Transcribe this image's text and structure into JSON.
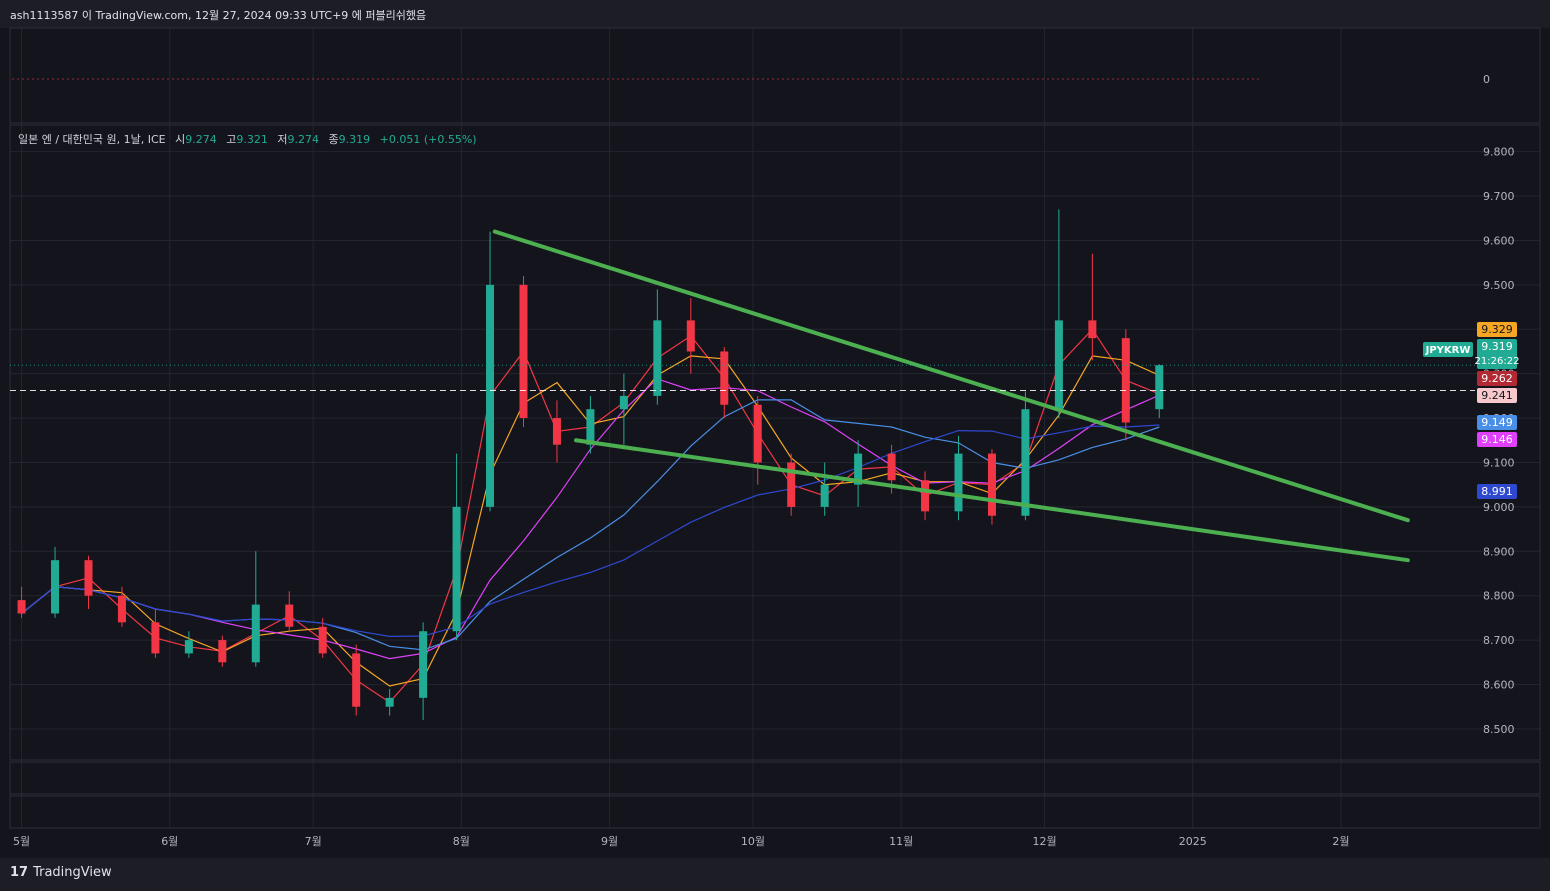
{
  "header": {
    "publish_text": "ash1113587 이 TradingView.com, 12월 27, 2024 09:33 UTC+9 에 퍼블리쉬했음"
  },
  "legend": {
    "symbol_text": "일본 엔 / 대한민국 원, 1날, ICE",
    "open_label": "시",
    "open": "9.274",
    "high_label": "고",
    "high": "9.321",
    "low_label": "저",
    "low": "9.274",
    "close_label": "종",
    "close": "9.319",
    "change": "+0.051 (+0.55%)"
  },
  "footer": {
    "logo_mark": "17",
    "logo_text": "TradingView"
  },
  "colors": {
    "background": "#14151c",
    "up": "#22ab94",
    "down": "#f23645",
    "ma_short": "#f23645",
    "ma_orange": "#f5a623",
    "ma_magenta": "#e040fb",
    "ma_blue_light": "#4a8fe7",
    "ma_blue_dark": "#2f48d0",
    "trendline": "#4caf50"
  },
  "chart_data": {
    "type": "candlestick",
    "symbol": "JPYKRW",
    "timeframe": "1날",
    "ylim": [
      8.43,
      9.86
    ],
    "y_ticks": [
      "9.800",
      "9.700",
      "9.600",
      "9.500",
      "9.400",
      "9.300",
      "9.200",
      "9.100",
      "9.000",
      "8.900",
      "8.800",
      "8.700",
      "8.600",
      "8.500"
    ],
    "oscillator_tick": "0",
    "x_ticks": [
      "5월",
      "6월",
      "7월",
      "8월",
      "9월",
      "10월",
      "11월",
      "12월",
      "2025",
      "2월"
    ],
    "candles_approx": [
      {
        "date": "2024-05-01",
        "open": 8.79,
        "close": 8.76,
        "high": 8.82,
        "low": 8.75
      },
      {
        "date": "2024-05-08",
        "open": 8.76,
        "close": 8.88,
        "high": 8.91,
        "low": 8.75
      },
      {
        "date": "2024-05-15",
        "open": 8.88,
        "close": 8.8,
        "high": 8.89,
        "low": 8.77
      },
      {
        "date": "2024-05-22",
        "open": 8.8,
        "close": 8.74,
        "high": 8.82,
        "low": 8.73
      },
      {
        "date": "2024-05-29",
        "open": 8.74,
        "close": 8.67,
        "high": 8.77,
        "low": 8.66
      },
      {
        "date": "2024-06-05",
        "open": 8.67,
        "close": 8.7,
        "high": 8.72,
        "low": 8.66
      },
      {
        "date": "2024-06-12",
        "open": 8.7,
        "close": 8.65,
        "high": 8.71,
        "low": 8.64
      },
      {
        "date": "2024-06-19",
        "open": 8.65,
        "close": 8.78,
        "high": 8.9,
        "low": 8.64
      },
      {
        "date": "2024-06-26",
        "open": 8.78,
        "close": 8.73,
        "high": 8.81,
        "low": 8.72
      },
      {
        "date": "2024-07-03",
        "open": 8.73,
        "close": 8.67,
        "high": 8.75,
        "low": 8.66
      },
      {
        "date": "2024-07-10",
        "open": 8.67,
        "close": 8.55,
        "high": 8.69,
        "low": 8.53
      },
      {
        "date": "2024-07-17",
        "open": 8.55,
        "close": 8.57,
        "high": 8.59,
        "low": 8.53
      },
      {
        "date": "2024-07-24",
        "open": 8.57,
        "close": 8.72,
        "high": 8.74,
        "low": 8.52
      },
      {
        "date": "2024-07-31",
        "open": 8.72,
        "close": 9.0,
        "high": 9.12,
        "low": 8.7
      },
      {
        "date": "2024-08-07",
        "open": 9.0,
        "close": 9.5,
        "high": 9.62,
        "low": 8.99
      },
      {
        "date": "2024-08-14",
        "open": 9.5,
        "close": 9.2,
        "high": 9.52,
        "low": 9.18
      },
      {
        "date": "2024-08-21",
        "open": 9.2,
        "close": 9.14,
        "high": 9.24,
        "low": 9.1
      },
      {
        "date": "2024-08-28",
        "open": 9.14,
        "close": 9.22,
        "high": 9.25,
        "low": 9.12
      },
      {
        "date": "2024-09-04",
        "open": 9.22,
        "close": 9.25,
        "high": 9.3,
        "low": 9.14
      },
      {
        "date": "2024-09-11",
        "open": 9.25,
        "close": 9.42,
        "high": 9.49,
        "low": 9.23
      },
      {
        "date": "2024-09-18",
        "open": 9.42,
        "close": 9.35,
        "high": 9.47,
        "low": 9.3
      },
      {
        "date": "2024-09-25",
        "open": 9.35,
        "close": 9.23,
        "high": 9.36,
        "low": 9.2
      },
      {
        "date": "2024-10-02",
        "open": 9.23,
        "close": 9.1,
        "high": 9.25,
        "low": 9.05
      },
      {
        "date": "2024-10-09",
        "open": 9.1,
        "close": 9.0,
        "high": 9.12,
        "low": 8.98
      },
      {
        "date": "2024-10-16",
        "open": 9.0,
        "close": 9.05,
        "high": 9.1,
        "low": 8.98
      },
      {
        "date": "2024-10-23",
        "open": 9.05,
        "close": 9.12,
        "high": 9.15,
        "low": 9.0
      },
      {
        "date": "2024-10-30",
        "open": 9.12,
        "close": 9.06,
        "high": 9.14,
        "low": 9.03
      },
      {
        "date": "2024-11-06",
        "open": 9.06,
        "close": 8.99,
        "high": 9.08,
        "low": 8.97
      },
      {
        "date": "2024-11-13",
        "open": 8.99,
        "close": 9.12,
        "high": 9.16,
        "low": 8.97
      },
      {
        "date": "2024-11-20",
        "open": 9.12,
        "close": 8.98,
        "high": 9.13,
        "low": 8.96
      },
      {
        "date": "2024-11-27",
        "open": 8.98,
        "close": 9.22,
        "high": 9.26,
        "low": 8.97
      },
      {
        "date": "2024-12-04",
        "open": 9.22,
        "close": 9.42,
        "high": 9.67,
        "low": 9.2
      },
      {
        "date": "2024-12-11",
        "open": 9.42,
        "close": 9.38,
        "high": 9.57,
        "low": 9.33
      },
      {
        "date": "2024-12-18",
        "open": 9.38,
        "close": 9.19,
        "high": 9.4,
        "low": 9.15
      },
      {
        "date": "2024-12-25",
        "open": 9.22,
        "close": 9.319,
        "high": 9.321,
        "low": 9.2
      }
    ],
    "moving_averages": [
      {
        "name": "MA short",
        "color": "#f23645"
      },
      {
        "name": "MA orange",
        "color": "#f5a623"
      },
      {
        "name": "MA magenta",
        "color": "#e040fb"
      },
      {
        "name": "MA blue light",
        "color": "#4a8fe7"
      },
      {
        "name": "MA blue dark",
        "color": "#2f48d0"
      }
    ],
    "horizontal_lines": [
      {
        "style": "dashed",
        "value": 9.262,
        "color": "#ffffff"
      },
      {
        "style": "dotted",
        "value": 9.319,
        "color": "#22ab94"
      }
    ],
    "trendlines": [
      {
        "from": {
          "date": "2024-08-08",
          "value": 9.62
        },
        "to": {
          "date": "2025-02-15",
          "value": 8.97
        },
        "color": "#4caf50"
      },
      {
        "from": {
          "date": "2024-08-25",
          "value": 9.15
        },
        "to": {
          "date": "2025-02-15",
          "value": 8.88
        },
        "color": "#4caf50"
      }
    ],
    "price_labels": [
      {
        "text": "9.329",
        "bg": "#f5a623",
        "fg": "#14151c"
      },
      {
        "text": "9.319",
        "bg": "#22ab94",
        "fg": "#ffffff",
        "tag": "JPYKRW",
        "countdown": "21:26:22"
      },
      {
        "text": "9.262",
        "bg": "#b22833",
        "fg": "#ffffff"
      },
      {
        "text": "9.241",
        "bg": "#f8c8cc",
        "fg": "#14151c"
      },
      {
        "text": "9.149",
        "bg": "#4a8fe7",
        "fg": "#ffffff"
      },
      {
        "text": "9.146",
        "bg": "#e040fb",
        "fg": "#ffffff"
      },
      {
        "text": "8.991",
        "bg": "#2f48d0",
        "fg": "#ffffff"
      }
    ]
  }
}
